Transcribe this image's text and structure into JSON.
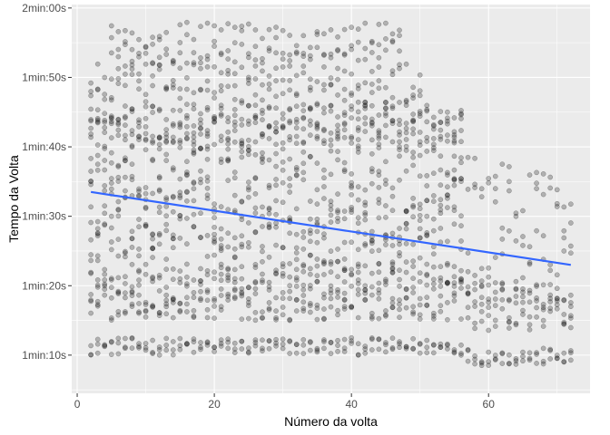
{
  "chart_data": {
    "type": "scatter",
    "title": "",
    "xlabel": "Número da volta",
    "ylabel": "Tempo da Volta",
    "xlim": [
      -0.8,
      74.8
    ],
    "ylim": [
      64.5,
      120.5
    ],
    "x_ticks": [
      0,
      20,
      40,
      60
    ],
    "x_tick_labels": [
      "0",
      "20",
      "40",
      "60"
    ],
    "y_ticks": [
      70,
      80,
      90,
      100,
      110,
      120
    ],
    "y_tick_labels": [
      "1min:10s",
      "1min:20s",
      "1min:30s",
      "1min:40s",
      "1min:50s",
      "2min:00s"
    ],
    "grid": true,
    "panel_background": "#ebebeb",
    "point_color": "#000000",
    "point_alpha": 0.25,
    "trend_color": "#3366ff",
    "trend_line": {
      "method": "linear",
      "x": [
        2,
        72
      ],
      "y": [
        93.5,
        83.0
      ]
    },
    "points_description_bands": [
      {
        "x_range": [
          2,
          72
        ],
        "y_range": [
          70,
          72.5
        ],
        "density": "medium"
      },
      {
        "x_range": [
          2,
          72
        ],
        "y_range": [
          75,
          82
        ],
        "density": "high"
      },
      {
        "x_range": [
          2,
          72
        ],
        "y_range": [
          82,
          100
        ],
        "density": "very-high"
      },
      {
        "x_range": [
          2,
          56
        ],
        "y_range": [
          100,
          106
        ],
        "density": "high"
      },
      {
        "x_range": [
          2,
          50
        ],
        "y_range": [
          106,
          112
        ],
        "density": "medium"
      },
      {
        "x_range": [
          5,
          47
        ],
        "y_range": [
          112,
          118
        ],
        "density": "medium"
      }
    ]
  }
}
